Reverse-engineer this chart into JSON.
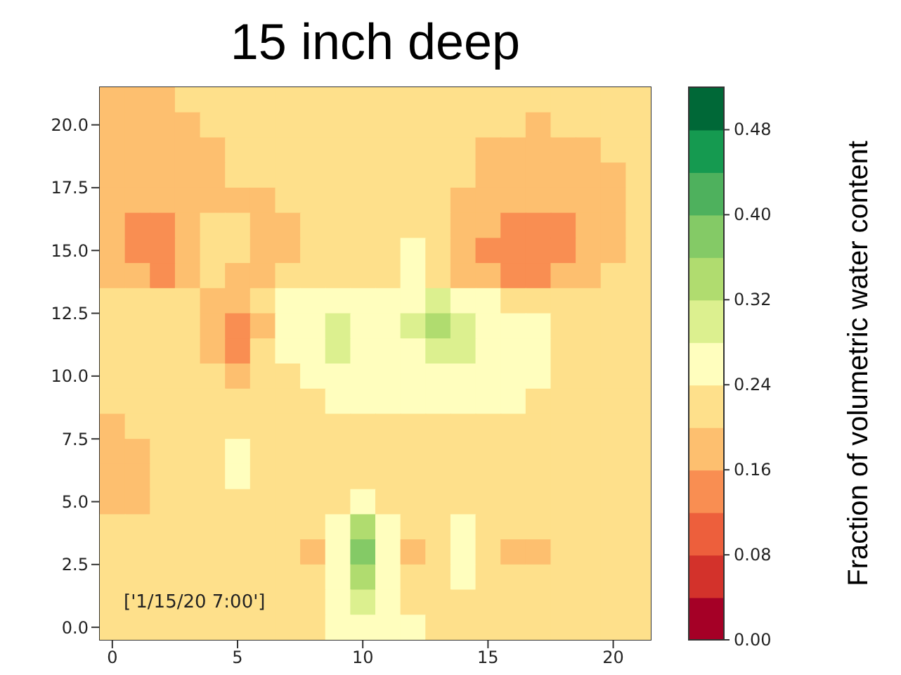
{
  "chart_data": {
    "type": "heatmap",
    "title": "15 inch deep",
    "clabel": "Fraction of volumetric water content",
    "annotations": [
      "['1/15/20 7:00']"
    ],
    "xlim": [
      -0.5,
      21.5
    ],
    "xticks": [
      0,
      5,
      10,
      15,
      20
    ],
    "ylim": [
      -0.5,
      21.5
    ],
    "yticks": [
      {
        "value": 0,
        "label": "0.0"
      },
      {
        "value": 2.5,
        "label": "2.5"
      },
      {
        "value": 5,
        "label": "5.0"
      },
      {
        "value": 7.5,
        "label": "7.5"
      },
      {
        "value": 10,
        "label": "10.0"
      },
      {
        "value": 12.5,
        "label": "12.5"
      },
      {
        "value": 15,
        "label": "15.0"
      },
      {
        "value": 17.5,
        "label": "17.5"
      },
      {
        "value": 20,
        "label": "20.0"
      }
    ],
    "clim": [
      0,
      0.52
    ],
    "cticks": [
      {
        "value": 0,
        "label": "0.00"
      },
      {
        "value": 0.08,
        "label": "0.08"
      },
      {
        "value": 0.16,
        "label": "0.16"
      },
      {
        "value": 0.24,
        "label": "0.24"
      },
      {
        "value": 0.32,
        "label": "0.32"
      },
      {
        "value": 0.4,
        "label": "0.40"
      },
      {
        "value": 0.48,
        "label": "0.48"
      }
    ],
    "colors": [
      "#a50026",
      "#d3322b",
      "#ed5f3c",
      "#f98e52",
      "#fdbf6f",
      "#fee08b",
      "#fffebe",
      "#dcf08f",
      "#b0dc6f",
      "#84ca66",
      "#4eb15d",
      "#159a50",
      "#006837"
    ],
    "cells": [
      [
        0.18,
        0.18,
        0.18,
        0.22,
        0.22,
        0.22,
        0.22,
        0.22,
        0.22,
        0.22,
        0.22,
        0.22,
        0.22,
        0.22,
        0.22,
        0.22,
        0.22,
        0.22,
        0.22,
        0.22,
        0.22,
        0.22
      ],
      [
        0.18,
        0.18,
        0.18,
        0.18,
        0.22,
        0.22,
        0.22,
        0.22,
        0.22,
        0.22,
        0.22,
        0.22,
        0.22,
        0.22,
        0.22,
        0.22,
        0.22,
        0.18,
        0.22,
        0.22,
        0.22,
        0.22
      ],
      [
        0.18,
        0.18,
        0.18,
        0.18,
        0.18,
        0.22,
        0.22,
        0.22,
        0.22,
        0.22,
        0.22,
        0.22,
        0.22,
        0.22,
        0.22,
        0.18,
        0.18,
        0.18,
        0.18,
        0.18,
        0.22,
        0.22
      ],
      [
        0.18,
        0.18,
        0.18,
        0.18,
        0.18,
        0.22,
        0.22,
        0.22,
        0.22,
        0.22,
        0.22,
        0.22,
        0.22,
        0.22,
        0.22,
        0.18,
        0.18,
        0.18,
        0.18,
        0.18,
        0.18,
        0.22
      ],
      [
        0.18,
        0.18,
        0.18,
        0.18,
        0.18,
        0.18,
        0.18,
        0.22,
        0.22,
        0.22,
        0.22,
        0.22,
        0.22,
        0.22,
        0.18,
        0.18,
        0.18,
        0.18,
        0.18,
        0.18,
        0.18,
        0.22
      ],
      [
        0.18,
        0.14,
        0.14,
        0.18,
        0.22,
        0.22,
        0.18,
        0.18,
        0.22,
        0.22,
        0.22,
        0.22,
        0.22,
        0.22,
        0.18,
        0.18,
        0.14,
        0.14,
        0.14,
        0.18,
        0.18,
        0.22
      ],
      [
        0.18,
        0.14,
        0.14,
        0.18,
        0.22,
        0.22,
        0.18,
        0.18,
        0.22,
        0.22,
        0.22,
        0.22,
        0.26,
        0.22,
        0.18,
        0.14,
        0.14,
        0.14,
        0.14,
        0.18,
        0.18,
        0.22
      ],
      [
        0.18,
        0.18,
        0.14,
        0.18,
        0.22,
        0.18,
        0.18,
        0.22,
        0.22,
        0.22,
        0.22,
        0.22,
        0.26,
        0.22,
        0.18,
        0.18,
        0.14,
        0.14,
        0.18,
        0.18,
        0.22,
        0.22
      ],
      [
        0.22,
        0.22,
        0.22,
        0.22,
        0.18,
        0.18,
        0.22,
        0.26,
        0.26,
        0.26,
        0.26,
        0.26,
        0.26,
        0.3,
        0.26,
        0.26,
        0.22,
        0.22,
        0.22,
        0.22,
        0.22,
        0.22
      ],
      [
        0.22,
        0.22,
        0.22,
        0.22,
        0.18,
        0.14,
        0.18,
        0.26,
        0.26,
        0.3,
        0.26,
        0.26,
        0.3,
        0.34,
        0.3,
        0.26,
        0.26,
        0.26,
        0.22,
        0.22,
        0.22,
        0.22
      ],
      [
        0.22,
        0.22,
        0.22,
        0.22,
        0.18,
        0.14,
        0.22,
        0.26,
        0.26,
        0.3,
        0.26,
        0.26,
        0.26,
        0.3,
        0.3,
        0.26,
        0.26,
        0.26,
        0.22,
        0.22,
        0.22,
        0.22
      ],
      [
        0.22,
        0.22,
        0.22,
        0.22,
        0.22,
        0.18,
        0.22,
        0.22,
        0.26,
        0.26,
        0.26,
        0.26,
        0.26,
        0.26,
        0.26,
        0.26,
        0.26,
        0.26,
        0.22,
        0.22,
        0.22,
        0.22
      ],
      [
        0.22,
        0.22,
        0.22,
        0.22,
        0.22,
        0.22,
        0.22,
        0.22,
        0.22,
        0.26,
        0.26,
        0.26,
        0.26,
        0.26,
        0.26,
        0.26,
        0.26,
        0.22,
        0.22,
        0.22,
        0.22,
        0.22
      ],
      [
        0.18,
        0.22,
        0.22,
        0.22,
        0.22,
        0.22,
        0.22,
        0.22,
        0.22,
        0.22,
        0.22,
        0.22,
        0.22,
        0.22,
        0.22,
        0.22,
        0.22,
        0.22,
        0.22,
        0.22,
        0.22,
        0.22
      ],
      [
        0.18,
        0.18,
        0.22,
        0.22,
        0.22,
        0.26,
        0.22,
        0.22,
        0.22,
        0.22,
        0.22,
        0.22,
        0.22,
        0.22,
        0.22,
        0.22,
        0.22,
        0.22,
        0.22,
        0.22,
        0.22,
        0.22
      ],
      [
        0.18,
        0.18,
        0.22,
        0.22,
        0.22,
        0.26,
        0.22,
        0.22,
        0.22,
        0.22,
        0.22,
        0.22,
        0.22,
        0.22,
        0.22,
        0.22,
        0.22,
        0.22,
        0.22,
        0.22,
        0.22,
        0.22
      ],
      [
        0.18,
        0.18,
        0.22,
        0.22,
        0.22,
        0.22,
        0.22,
        0.22,
        0.22,
        0.22,
        0.26,
        0.22,
        0.22,
        0.22,
        0.22,
        0.22,
        0.22,
        0.22,
        0.22,
        0.22,
        0.22,
        0.22
      ],
      [
        0.22,
        0.22,
        0.22,
        0.22,
        0.22,
        0.22,
        0.22,
        0.22,
        0.22,
        0.26,
        0.34,
        0.26,
        0.22,
        0.22,
        0.26,
        0.22,
        0.22,
        0.22,
        0.22,
        0.22,
        0.22,
        0.22
      ],
      [
        0.22,
        0.22,
        0.22,
        0.22,
        0.22,
        0.22,
        0.22,
        0.22,
        0.18,
        0.26,
        0.38,
        0.26,
        0.18,
        0.22,
        0.26,
        0.22,
        0.18,
        0.18,
        0.22,
        0.22,
        0.22,
        0.22
      ],
      [
        0.22,
        0.22,
        0.22,
        0.22,
        0.22,
        0.22,
        0.22,
        0.22,
        0.22,
        0.26,
        0.34,
        0.26,
        0.22,
        0.22,
        0.26,
        0.22,
        0.22,
        0.22,
        0.22,
        0.22,
        0.22,
        0.22
      ],
      [
        0.22,
        0.22,
        0.22,
        0.22,
        0.22,
        0.22,
        0.22,
        0.22,
        0.22,
        0.26,
        0.3,
        0.26,
        0.22,
        0.22,
        0.22,
        0.22,
        0.22,
        0.22,
        0.22,
        0.22,
        0.22,
        0.22
      ],
      [
        0.22,
        0.22,
        0.22,
        0.22,
        0.22,
        0.22,
        0.22,
        0.22,
        0.22,
        0.26,
        0.26,
        0.26,
        0.26,
        0.22,
        0.22,
        0.22,
        0.22,
        0.22,
        0.22,
        0.22,
        0.22,
        0.22
      ]
    ]
  }
}
